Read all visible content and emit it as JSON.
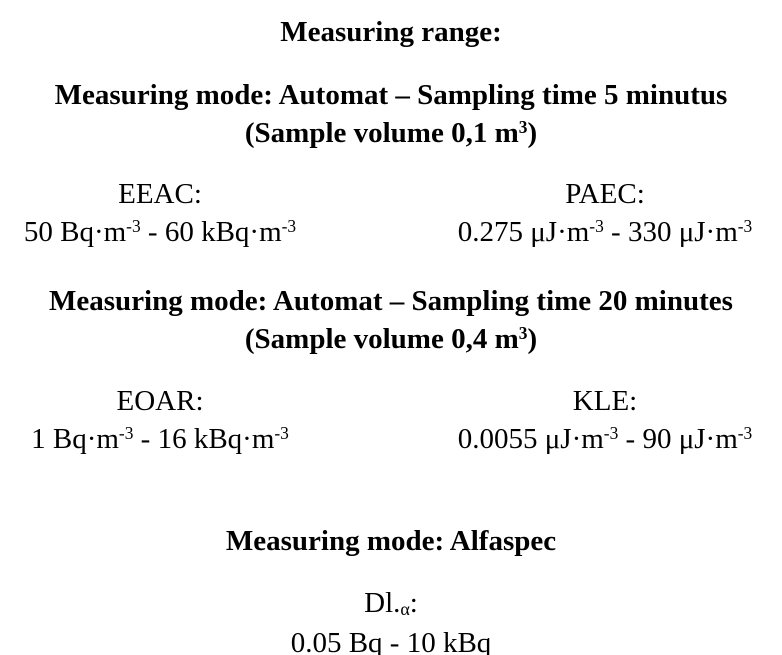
{
  "document": {
    "title": "Measuring range:",
    "colors": {
      "text": "#000000",
      "background": "#ffffff"
    },
    "sections": [
      {
        "heading": "Measuring mode: Automat – Sampling time 5 minutus",
        "subheading": [
          {
            "t": "(Sample volume 0,1 m"
          },
          {
            "t": "3",
            "sup": true
          },
          {
            "t": ")"
          }
        ],
        "left": {
          "label": "EEAC:",
          "range": [
            {
              "t": "50 Bq·m"
            },
            {
              "t": "-3",
              "sup": true
            },
            {
              "t": " - 60 kBq·m"
            },
            {
              "t": "-3",
              "sup": true
            }
          ]
        },
        "right": {
          "label": "PAEC:",
          "range": [
            {
              "t": "0.275 μJ·m"
            },
            {
              "t": "-3",
              "sup": true
            },
            {
              "t": " - 330 μJ·m"
            },
            {
              "t": "-3",
              "sup": true
            }
          ]
        }
      },
      {
        "heading": "Measuring mode: Automat – Sampling time 20 minutes",
        "subheading": [
          {
            "t": "(Sample volume 0,4 m"
          },
          {
            "t": "3",
            "sup": true
          },
          {
            "t": ")"
          }
        ],
        "left": {
          "label": "EOAR:",
          "range": [
            {
              "t": "1 Bq·m"
            },
            {
              "t": "-3",
              "sup": true
            },
            {
              "t": " - 16 kBq·m"
            },
            {
              "t": "-3",
              "sup": true
            }
          ]
        },
        "right": {
          "label": "KLE:",
          "range": [
            {
              "t": "0.0055 μJ·m"
            },
            {
              "t": "-3",
              "sup": true
            },
            {
              "t": " - 90 μJ·m"
            },
            {
              "t": "-3",
              "sup": true
            }
          ]
        }
      },
      {
        "heading": "Measuring mode: Alfaspec",
        "center": {
          "label": [
            {
              "t": "Dl."
            },
            {
              "t": "α",
              "sub": true
            },
            {
              "t": ":"
            }
          ],
          "range": [
            {
              "t": "0.05 Bq - 10 kBq"
            }
          ]
        }
      }
    ]
  }
}
